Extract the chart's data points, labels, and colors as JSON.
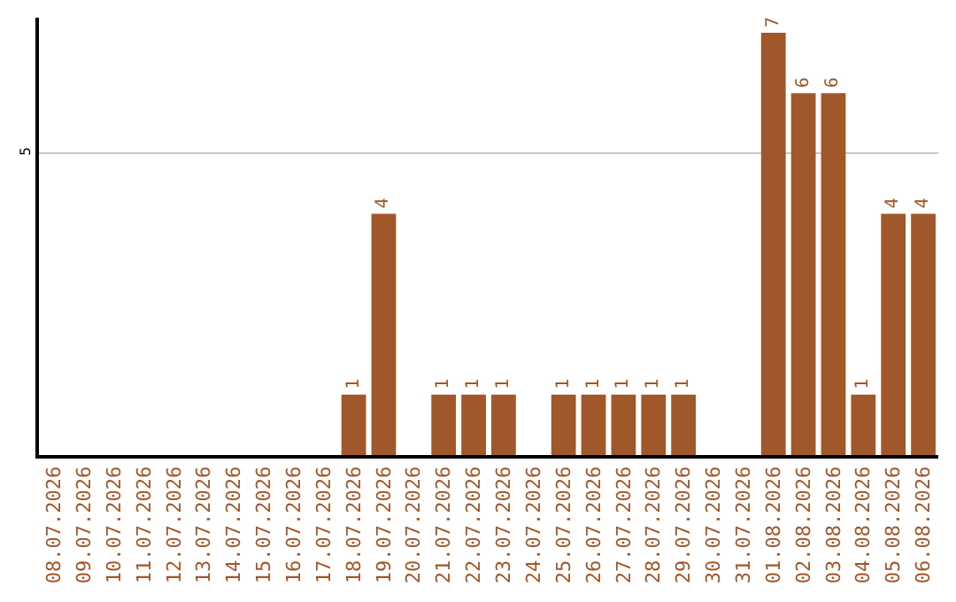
{
  "chart_data": {
    "type": "bar",
    "categories": [
      "08.07.2026",
      "09.07.2026",
      "10.07.2026",
      "11.07.2026",
      "12.07.2026",
      "13.07.2026",
      "14.07.2026",
      "15.07.2026",
      "16.07.2026",
      "17.07.2026",
      "18.07.2026",
      "19.07.2026",
      "20.07.2026",
      "21.07.2026",
      "22.07.2026",
      "23.07.2026",
      "24.07.2026",
      "25.07.2026",
      "26.07.2026",
      "27.07.2026",
      "28.07.2026",
      "29.07.2026",
      "30.07.2026",
      "31.07.2026",
      "01.08.2026",
      "02.08.2026",
      "03.08.2026",
      "04.08.2026",
      "05.08.2026",
      "06.08.2026"
    ],
    "values": [
      0,
      0,
      0,
      0,
      0,
      0,
      0,
      0,
      0,
      0,
      1,
      4,
      0,
      1,
      1,
      1,
      0,
      1,
      1,
      1,
      1,
      1,
      0,
      0,
      7,
      6,
      6,
      1,
      4,
      4
    ],
    "value_labels": [
      null,
      null,
      null,
      null,
      null,
      null,
      null,
      null,
      null,
      null,
      "1",
      "4",
      null,
      "1",
      "1",
      "1",
      null,
      "1",
      "1",
      "1",
      "1",
      "1",
      null,
      null,
      "7",
      "6",
      "6",
      "1",
      "4",
      "4"
    ],
    "color": "#a0572a",
    "ylim": [
      0,
      7.25
    ],
    "yticks": [
      5
    ],
    "grid": "y"
  }
}
